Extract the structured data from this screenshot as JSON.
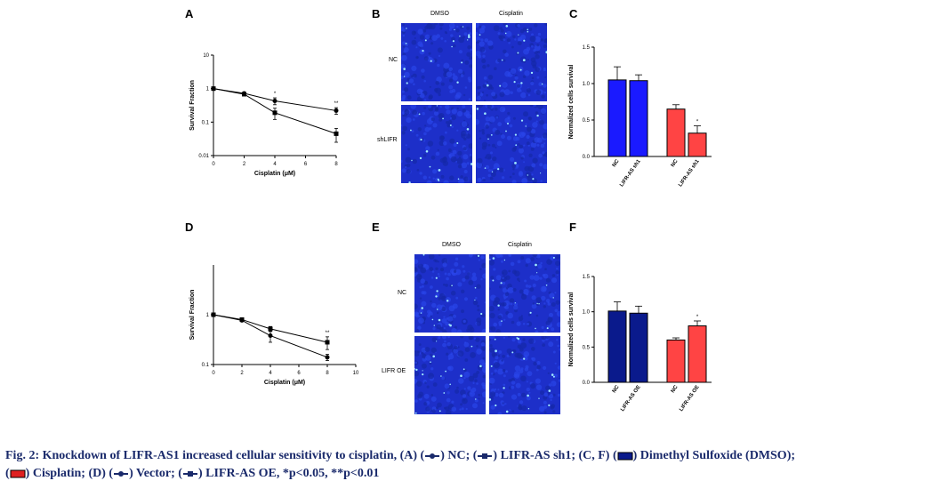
{
  "panels": {
    "A": "A",
    "B": "B",
    "C": "C",
    "D": "D",
    "E": "E",
    "F": "F"
  },
  "images": {
    "B": {
      "col_labels": [
        "DMSO",
        "Cisplatin"
      ],
      "row_labels": [
        "NC",
        "shLIFR"
      ]
    },
    "E": {
      "col_labels": [
        "DMSO",
        "Cisplatin"
      ],
      "row_labels": [
        "NC",
        "LIFR OE"
      ]
    }
  },
  "colors": {
    "dmso": "#1a1aff",
    "cisplatin": "#f44",
    "navy": "#0a1a8c",
    "caption": "#1a2a6b"
  },
  "chart_data": [
    {
      "id": "A",
      "type": "line",
      "xlabel": "Cisplatin (μM)",
      "ylabel": "Survival Fraction",
      "yscale": "log",
      "ylim": [
        0.01,
        10
      ],
      "xlim": [
        0,
        8
      ],
      "xticks": [
        "0",
        "2",
        "4",
        "6",
        "8"
      ],
      "yticks": [
        "0.01",
        "0.1",
        "1",
        "10"
      ],
      "series": [
        {
          "marker": "circle",
          "x": [
            0,
            2,
            4,
            8
          ],
          "y": [
            1.0,
            0.72,
            0.43,
            0.22
          ],
          "err": [
            0.05,
            0.05,
            0.1,
            0.05
          ]
        },
        {
          "marker": "square",
          "x": [
            0,
            2,
            4,
            8
          ],
          "y": [
            1.0,
            0.68,
            0.19,
            0.045
          ],
          "err": [
            0.05,
            0.05,
            0.07,
            0.02
          ]
        }
      ],
      "annotations": [
        {
          "x": 4,
          "text": "*"
        },
        {
          "x": 8,
          "text": "**"
        }
      ]
    },
    {
      "id": "C",
      "type": "bar",
      "ylabel": "Normalized cells survival",
      "ylim": [
        0,
        1.5
      ],
      "yticks": [
        "0.0",
        "0.5",
        "1.0",
        "1.5"
      ],
      "categories": [
        "NC",
        "LIFR-AS sh1",
        "NC",
        "LIFR-AS sh1"
      ],
      "values": [
        1.05,
        1.04,
        0.65,
        0.32
      ],
      "err": [
        0.18,
        0.08,
        0.06,
        0.1
      ],
      "bar_colors": [
        "dmso",
        "dmso",
        "cisplatin",
        "cisplatin"
      ],
      "annotations": [
        {
          "index": 3,
          "text": "*"
        }
      ]
    },
    {
      "id": "D",
      "type": "line",
      "xlabel": "Cisplatin (μM)",
      "ylabel": "Survival Fraction",
      "yscale": "log",
      "ylim": [
        0.1,
        10
      ],
      "xlim": [
        0,
        10
      ],
      "xticks": [
        "0",
        "2",
        "4",
        "6",
        "8",
        "10"
      ],
      "yticks": [
        "0.1",
        "1"
      ],
      "series": [
        {
          "marker": "circle",
          "x": [
            0,
            2,
            4,
            8
          ],
          "y": [
            1.0,
            0.77,
            0.38,
            0.14
          ],
          "err": [
            0.05,
            0.04,
            0.1,
            0.02
          ]
        },
        {
          "marker": "square",
          "x": [
            0,
            2,
            4,
            8
          ],
          "y": [
            1.0,
            0.8,
            0.52,
            0.28
          ],
          "err": [
            0.05,
            0.04,
            0.06,
            0.08
          ]
        }
      ],
      "annotations": [
        {
          "x": 8,
          "text": "**"
        }
      ]
    },
    {
      "id": "F",
      "type": "bar",
      "ylabel": "Normalized cells survival",
      "ylim": [
        0,
        1.5
      ],
      "yticks": [
        "0.0",
        "0.5",
        "1.0",
        "1.5"
      ],
      "categories": [
        "NC",
        "LIFR-AS OE",
        "NC",
        "LIFR-AS OE"
      ],
      "values": [
        1.01,
        0.98,
        0.6,
        0.8
      ],
      "err": [
        0.13,
        0.1,
        0.03,
        0.07
      ],
      "bar_colors": [
        "navy",
        "navy",
        "cisplatin",
        "cisplatin"
      ],
      "annotations": [
        {
          "index": 3,
          "text": "*"
        }
      ]
    }
  ],
  "caption": {
    "p1": "Fig. 2: Knockdown of LIFR-AS1 increased cellular sensitivity to cisplatin, (A) (",
    "p2": ") NC; (",
    "p3": ") LIFR-AS sh1; (C, F) (",
    "p4": ") Dimethyl Sulfoxide (DMSO);",
    "p5": ") Cisplatin; (D) (",
    "p6": ") Vector; (",
    "p7": ") LIFR-AS OE, *p<0.05, **p<0.01",
    "open": "("
  }
}
